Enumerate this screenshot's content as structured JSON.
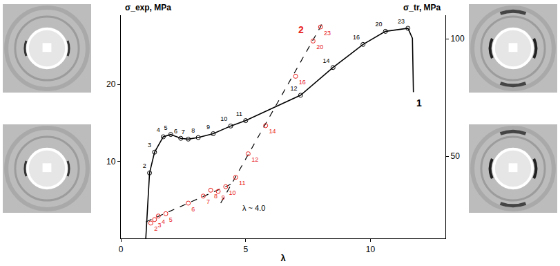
{
  "chart_data": {
    "type": "line",
    "x_label": "λ",
    "y_label": "σ_exp, MPa",
    "y2_label": "σ_tr, MPa",
    "xlim": [
      0,
      13
    ],
    "xticks": [
      0,
      5,
      10
    ],
    "ylim": [
      0,
      29
    ],
    "yticks": [
      10,
      20
    ],
    "y2lim": [
      15,
      110
    ],
    "y2ticks": [
      50,
      100
    ],
    "grid": false,
    "series": [
      {
        "name": "1",
        "type": "line",
        "axis": "y",
        "color": "#000000",
        "marker": "open_circle",
        "line_style": "solid",
        "x": [
          1.0,
          1.15,
          1.35,
          1.7,
          2.0,
          2.4,
          2.7,
          3.1,
          3.7,
          4.4,
          5.0,
          7.2,
          8.5,
          9.7,
          10.6,
          11.5,
          11.68,
          11.72
        ],
        "values": [
          0,
          8.5,
          11.2,
          13.2,
          13.5,
          13.0,
          12.9,
          13.1,
          13.6,
          14.6,
          15.3,
          18.6,
          22.2,
          25.2,
          26.9,
          27.3,
          26.0,
          19.0
        ],
        "point_labels": [
          null,
          "2",
          "3",
          "4",
          "5",
          "6",
          "7",
          "8",
          "9",
          "10",
          "11",
          "12",
          "14",
          "16",
          "20",
          "23",
          null,
          null
        ]
      },
      {
        "name": "2",
        "type": "scatter",
        "axis": "y2",
        "color": "#e8231f",
        "marker": "open_circle",
        "x": [
          1.2,
          1.35,
          1.5,
          1.8,
          2.7,
          3.3,
          3.6,
          3.9,
          4.2,
          4.6,
          5.1,
          5.8,
          7.0,
          7.7,
          8.0
        ],
        "values": [
          21.5,
          23,
          24.5,
          25.5,
          30,
          33,
          35.5,
          35,
          37,
          41,
          51,
          63,
          84,
          99,
          105
        ],
        "point_labels": [
          "2",
          "3",
          "4",
          "5",
          "6",
          "7",
          "8",
          "9",
          "10",
          "11",
          "12",
          "14",
          "16",
          "20",
          "23"
        ]
      }
    ],
    "fits": [
      {
        "axis": "y2",
        "color": "#000000",
        "line_style": "dash",
        "x": [
          1.0,
          4.4
        ],
        "values": [
          22,
          38
        ]
      },
      {
        "axis": "y2",
        "color": "#000000",
        "line_style": "dash",
        "x": [
          4.0,
          8.1
        ],
        "values": [
          30,
          107
        ]
      }
    ],
    "annotations": [
      {
        "text": "λ ~ 4.0",
        "x": 4.8,
        "y": 28,
        "axis": "y2"
      }
    ]
  }
}
